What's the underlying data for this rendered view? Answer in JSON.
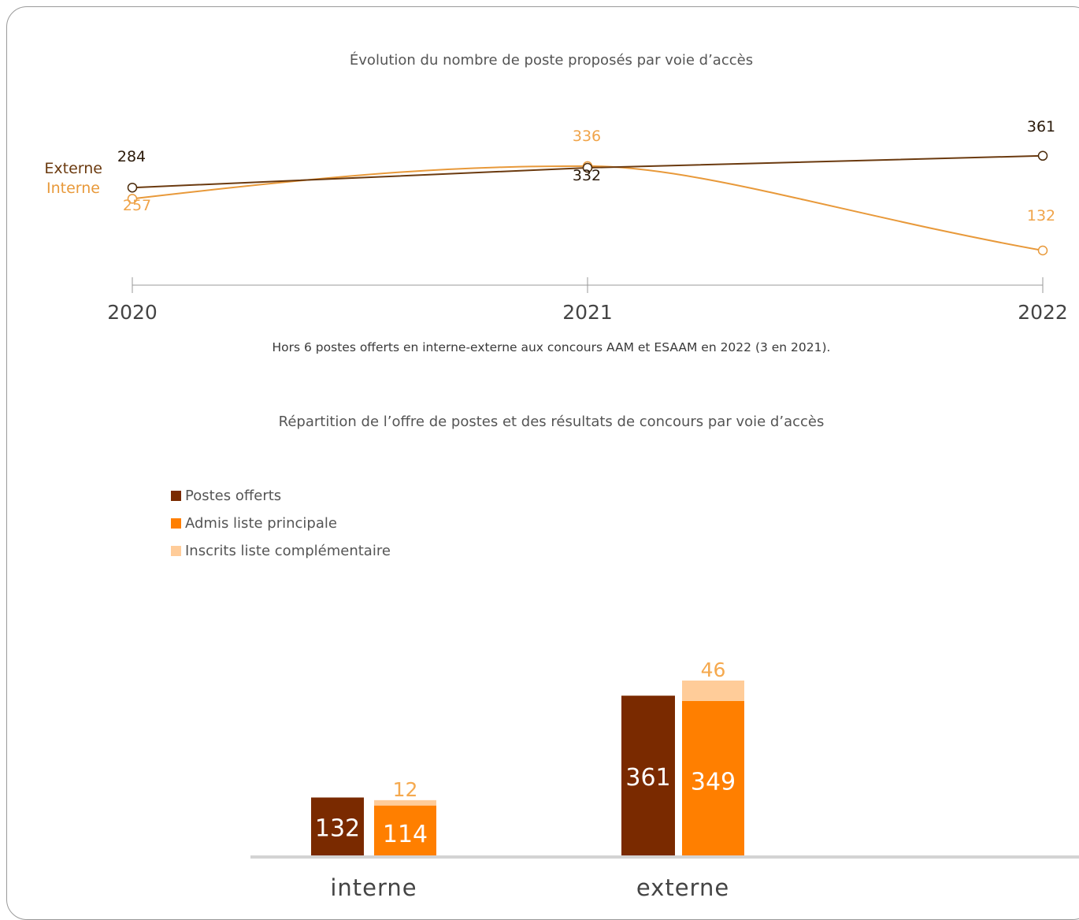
{
  "charts": {
    "line_title": "Évolution du nombre de poste proposés par voie d’accès",
    "line_note": "Hors 6 postes offerts en interne-externe aux concours AAM et ESAAM en 2022  (3 en 2021).",
    "bar_title": "Répartition de l’offre de postes et des résultats de concours par voie d’accès"
  },
  "colors": {
    "dark_brown": "#7a2a00",
    "line_externe": "#6b3a0f",
    "line_interne": "#e8993a",
    "label_interne": "#f0a44a",
    "orange": "#ff7f00",
    "light_orange": "#ffcc99",
    "axis": "#999999"
  },
  "chart_data": [
    {
      "type": "line",
      "title": "Évolution du nombre de poste proposés par voie d’accès",
      "x": [
        "2020",
        "2021",
        "2022"
      ],
      "series": [
        {
          "name": "Externe",
          "values": [
            284,
            332,
            361
          ]
        },
        {
          "name": "Interne",
          "values": [
            257,
            336,
            132
          ]
        }
      ],
      "ylim": [
        0,
        400
      ],
      "grid": false,
      "legend": "left"
    },
    {
      "type": "bar",
      "title": "Répartition de l’offre de postes et des résultats de concours par voie d’accès",
      "categories": [
        "interne",
        "externe"
      ],
      "series": [
        {
          "name": "Postes offerts",
          "values": [
            132,
            361
          ]
        },
        {
          "name": "Admis liste principale",
          "values": [
            114,
            349
          ]
        },
        {
          "name": "Inscrits liste complémentaire",
          "values": [
            12,
            46
          ]
        }
      ],
      "stacked_series": [
        "Admis liste principale",
        "Inscrits liste complémentaire"
      ],
      "ylim": [
        0,
        400
      ],
      "grid": false,
      "legend": "top-left"
    }
  ]
}
